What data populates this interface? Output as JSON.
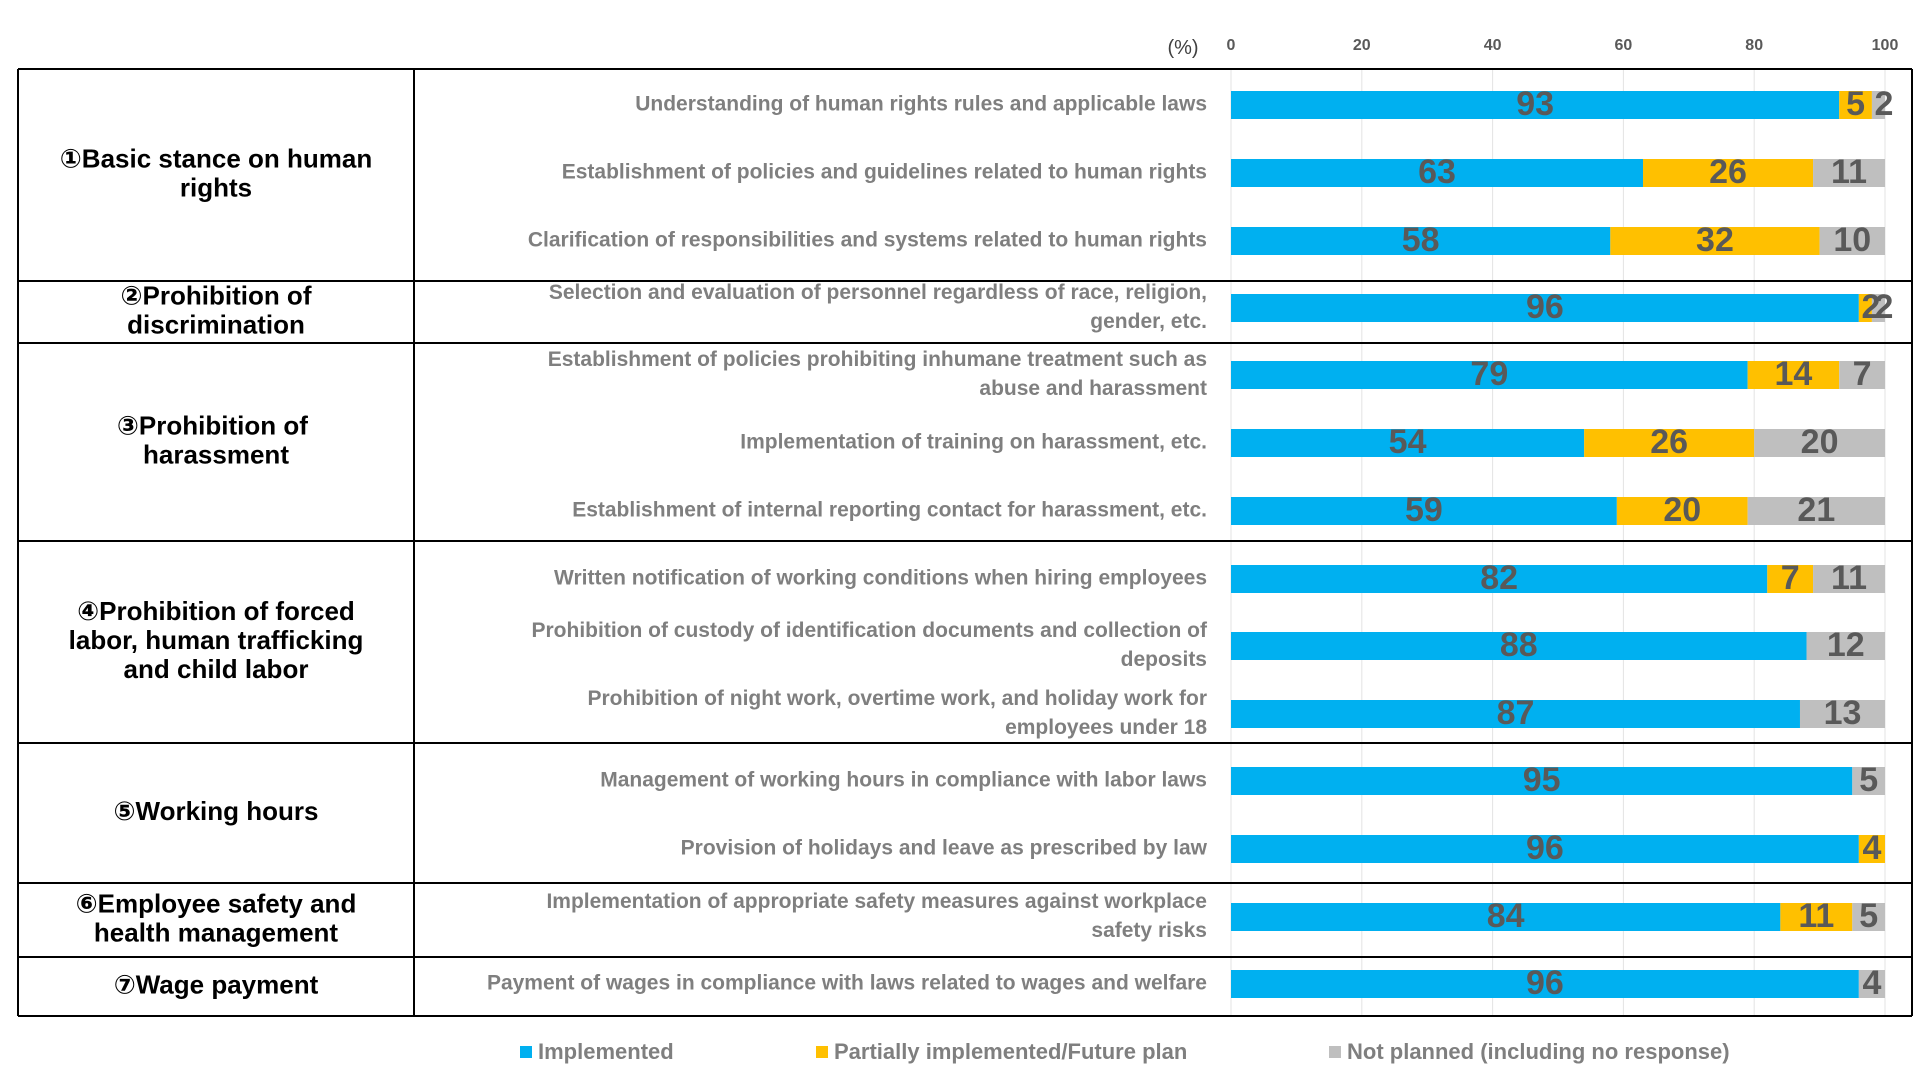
{
  "chart_data": {
    "type": "bar",
    "orientation": "horizontal",
    "stacked": true,
    "unit_label": "(%)",
    "xlim": [
      0,
      100
    ],
    "xticks": [
      0,
      20,
      40,
      60,
      80,
      100
    ],
    "grid": true,
    "legend_position": "bottom",
    "colors": {
      "Implemented": "#00b0f0",
      "Partially implemented/Future plan": "#ffc000",
      "Not planned (including no response)": "#bfbfbf"
    },
    "groups": [
      {
        "label": "①Basic stance on human rights",
        "items": [
          0,
          1,
          2
        ]
      },
      {
        "label": "②Prohibition of discrimination",
        "items": [
          3
        ]
      },
      {
        "label": "③Prohibition of  harassment",
        "items": [
          4,
          5,
          6
        ]
      },
      {
        "label": "④Prohibition of forced labor, human trafficking and child labor",
        "items": [
          7,
          8,
          9
        ]
      },
      {
        "label": "⑤Working hours",
        "items": [
          10,
          11
        ]
      },
      {
        "label": "⑥Employee safety and health management",
        "items": [
          12
        ]
      },
      {
        "label": "⑦Wage payment",
        "items": [
          13
        ]
      }
    ],
    "categories": [
      "Understanding of human rights rules and applicable laws",
      "Establishment of policies and guidelines related to human rights",
      "Clarification of responsibilities and systems related to human rights",
      "Selection and evaluation of personnel regardless of race, religion, gender, etc.",
      "Establishment of policies prohibiting inhumane treatment such as abuse and harassment",
      "Implementation of training on harassment, etc.",
      "Establishment of internal reporting contact for harassment, etc.",
      "Written notification of working conditions when hiring employees",
      "Prohibition of custody of identification documents and collection of deposits",
      "Prohibition of night work, overtime work, and holiday work for employees under 18",
      "Management of working hours in compliance with labor laws",
      "Provision of holidays and leave as prescribed by law",
      "Implementation of appropriate safety measures against workplace safety risks",
      "Payment of wages in compliance with laws related to wages and welfare"
    ],
    "series": [
      {
        "name": "Implemented",
        "values": [
          93,
          63,
          58,
          96,
          79,
          54,
          59,
          82,
          88,
          87,
          95,
          96,
          84,
          96
        ]
      },
      {
        "name": "Partially implemented/Future plan",
        "values": [
          5,
          26,
          32,
          2,
          14,
          26,
          20,
          7,
          0,
          0,
          0,
          4,
          11,
          0
        ]
      },
      {
        "name": "Not planned (including no response)",
        "values": [
          2,
          11,
          10,
          2,
          7,
          20,
          21,
          11,
          12,
          13,
          5,
          0,
          5,
          4
        ]
      }
    ]
  }
}
